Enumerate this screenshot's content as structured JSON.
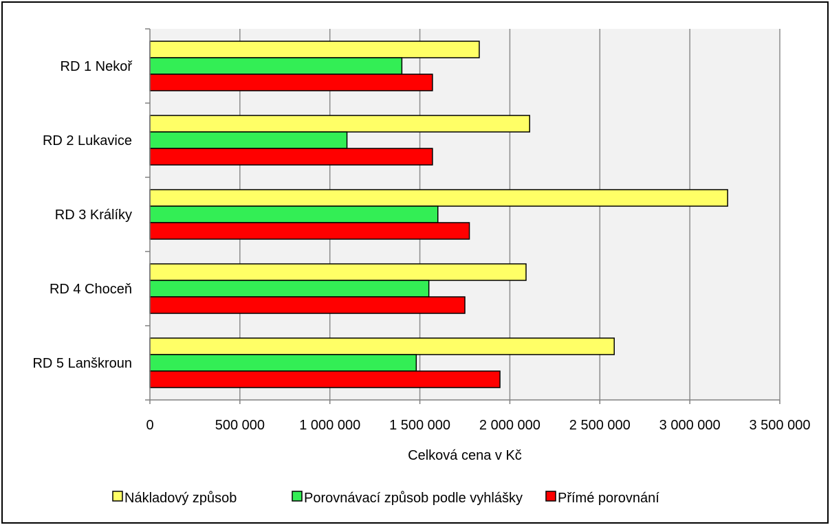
{
  "chart_data": {
    "type": "bar",
    "orientation": "horizontal",
    "title": "",
    "xlabel": "Celková cena v Kč",
    "ylabel": "",
    "xlim": [
      0,
      3500000
    ],
    "x_ticks": [
      0,
      500000,
      1000000,
      1500000,
      2000000,
      2500000,
      3000000,
      3500000
    ],
    "x_tick_labels": [
      "0",
      "500 000",
      "1 000 000",
      "1 500 000",
      "2 000 000",
      "2 500 000",
      "3 000 000",
      "3 500 000"
    ],
    "categories": [
      "RD 1 Nekoř",
      "RD 2 Lukavice",
      "RD 3 Králíky",
      "RD 4 Choceň",
      "RD 5 Lanškroun"
    ],
    "series": [
      {
        "name": "Nákladový způsob",
        "color": "#ffff66",
        "values": [
          1830000,
          2110000,
          3210000,
          2090000,
          2580000
        ]
      },
      {
        "name": "Porovnávací způsob podle vyhlášky",
        "color": "#33ee55",
        "values": [
          1400000,
          1095000,
          1600000,
          1550000,
          1480000
        ]
      },
      {
        "name": "Přímé porovnání",
        "color": "#ff0000",
        "values": [
          1570000,
          1570000,
          1775000,
          1750000,
          1945000
        ]
      }
    ],
    "grid": true,
    "legend_position": "bottom"
  }
}
